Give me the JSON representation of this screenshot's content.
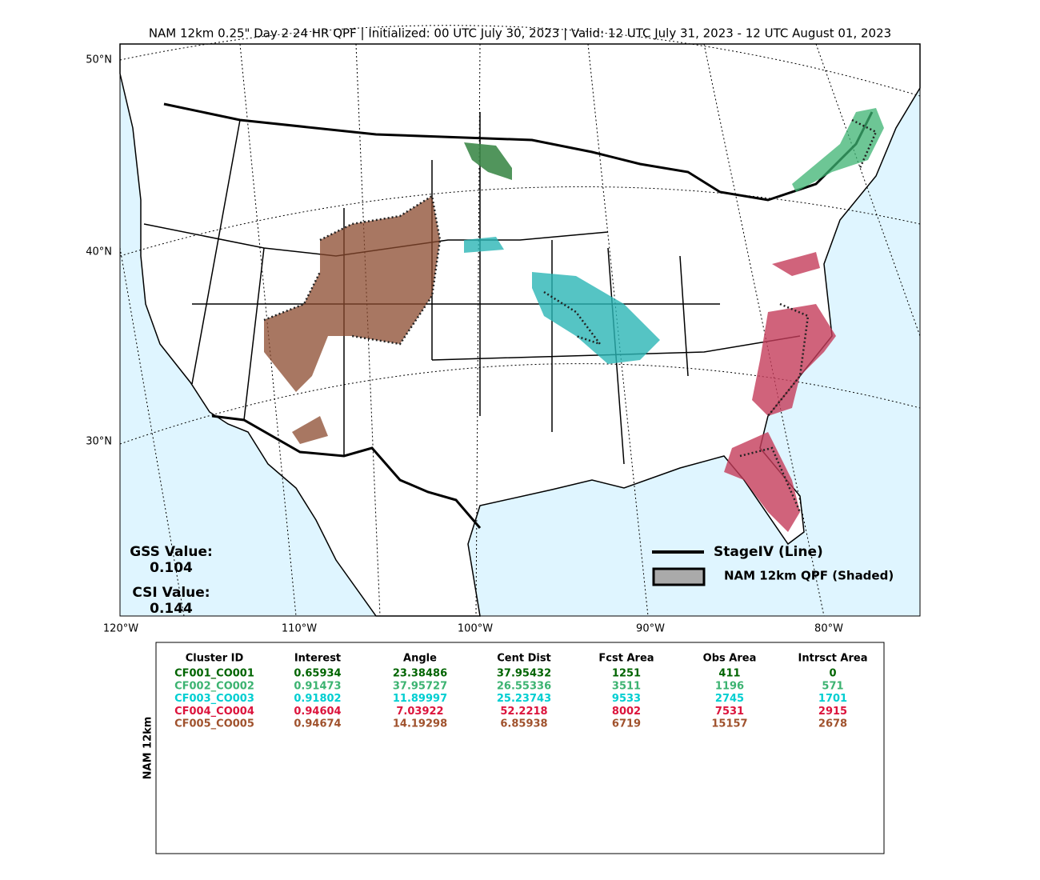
{
  "title": "NAM 12km 0.25\" Day 2 24 HR QPF | Initialized: 00 UTC July 30, 2023 | Valid: 12 UTC July 31, 2023 - 12 UTC August 01, 2023",
  "map": {
    "lat_labels": [
      "50°N",
      "40°N",
      "30°N"
    ],
    "lon_labels": [
      "120°W",
      "110°W",
      "100°W",
      "90°W",
      "80°W"
    ],
    "gss_label": "GSS Value:",
    "gss_value": 0.104,
    "csi_label": "CSI Value:",
    "csi_value": 0.144,
    "legend": {
      "line": "StageIV (Line)",
      "shaded": "NAM 12km QPF (Shaded)"
    }
  },
  "table": {
    "side_label": "NAM 12km",
    "header": [
      "Cluster ID",
      "Interest",
      "Angle",
      "Cent Dist",
      "Fcst Area",
      "Obs Area",
      "Intrsct Area"
    ],
    "rows": [
      {
        "color": "#006400",
        "cells": [
          "CF001_CO001",
          0.65934,
          23.38486,
          37.95432,
          1251,
          411,
          0
        ]
      },
      {
        "color": "#3cb371",
        "cells": [
          "CF002_CO002",
          0.91473,
          37.95727,
          26.55336,
          3511,
          1196,
          571
        ]
      },
      {
        "color": "#00ced1",
        "cells": [
          "CF003_CO003",
          0.91802,
          11.89997,
          25.23743,
          9533,
          2745,
          1701
        ]
      },
      {
        "color": "#dc143c",
        "cells": [
          "CF004_CO004",
          0.94604,
          7.03922,
          52.2218,
          8002,
          7531,
          2915
        ]
      },
      {
        "color": "#a0522d",
        "cells": [
          "CF005_CO005",
          0.94674,
          14.19298,
          6.85938,
          6719,
          15157,
          2678
        ]
      }
    ]
  }
}
